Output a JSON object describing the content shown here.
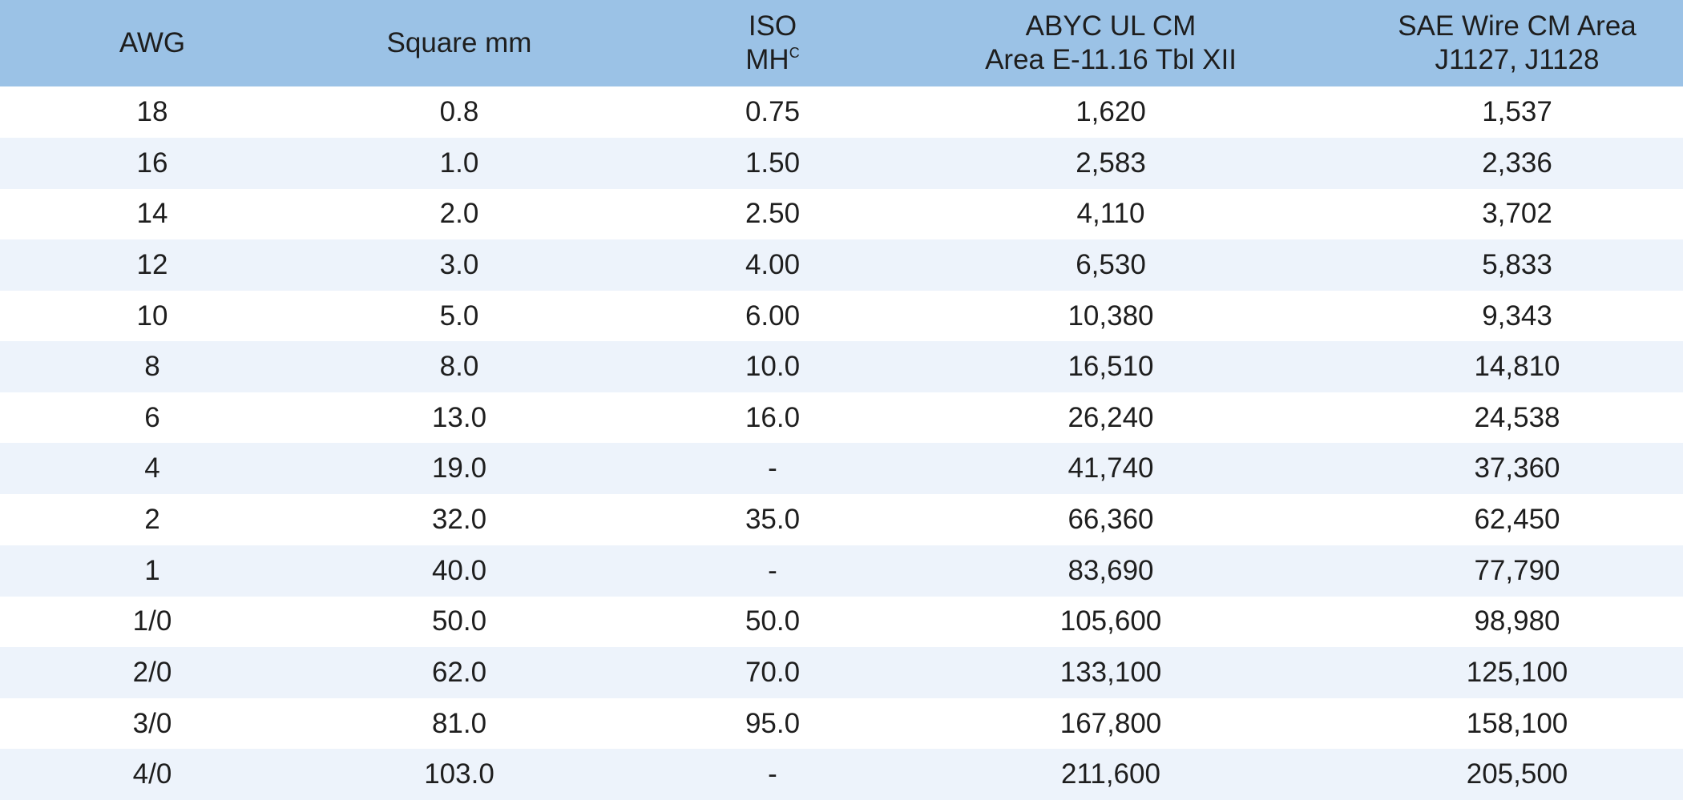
{
  "table": {
    "header": [
      {
        "lines": [
          "AWG"
        ]
      },
      {
        "lines": [
          "Square mm"
        ]
      },
      {
        "lines": [
          "ISO",
          "MH"
        ],
        "sup": "C"
      },
      {
        "lines": [
          "ABYC UL CM",
          "Area E-11.16 Tbl XII"
        ]
      },
      {
        "lines": [
          "SAE Wire CM Area",
          "J1127, J1128"
        ]
      }
    ],
    "rows": [
      [
        "18",
        "0.8",
        "0.75",
        "1,620",
        "1,537"
      ],
      [
        "16",
        "1.0",
        "1.50",
        "2,583",
        "2,336"
      ],
      [
        "14",
        "2.0",
        "2.50",
        "4,110",
        "3,702"
      ],
      [
        "12",
        "3.0",
        "4.00",
        "6,530",
        "5,833"
      ],
      [
        "10",
        "5.0",
        "6.00",
        "10,380",
        "9,343"
      ],
      [
        "8",
        "8.0",
        "10.0",
        "16,510",
        "14,810"
      ],
      [
        "6",
        "13.0",
        "16.0",
        "26,240",
        "24,538"
      ],
      [
        "4",
        "19.0",
        "-",
        "41,740",
        "37,360"
      ],
      [
        "2",
        "32.0",
        "35.0",
        "66,360",
        "62,450"
      ],
      [
        "1",
        "40.0",
        "-",
        "83,690",
        "77,790"
      ],
      [
        "1/0",
        "50.0",
        "50.0",
        "105,600",
        "98,980"
      ],
      [
        "2/0",
        "62.0",
        "70.0",
        "133,100",
        "125,100"
      ],
      [
        "3/0",
        "81.0",
        "95.0",
        "167,800",
        "158,100"
      ],
      [
        "4/0",
        "103.0",
        "-",
        "211,600",
        "205,500"
      ]
    ]
  }
}
